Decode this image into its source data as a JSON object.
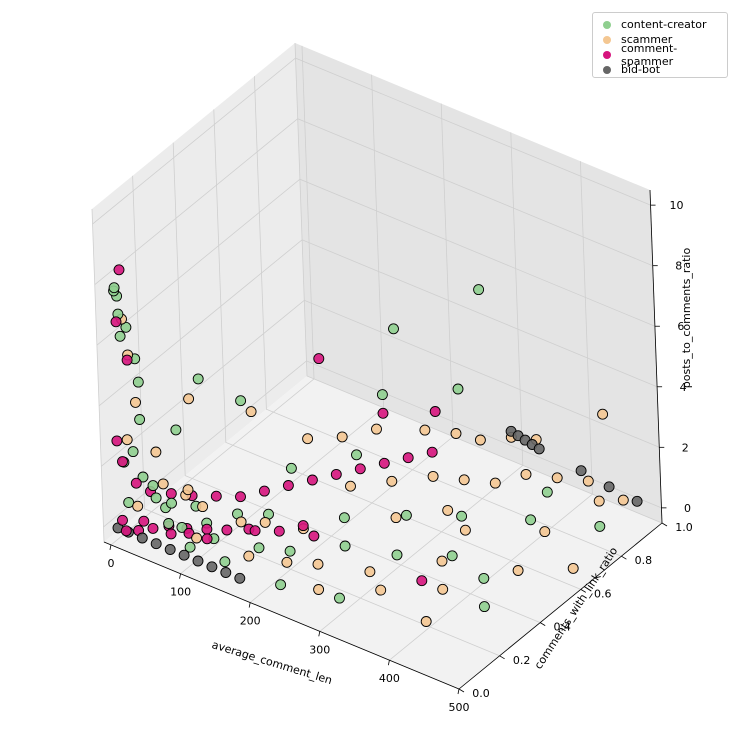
{
  "chart_data": {
    "type": "scatter",
    "projection": "3d",
    "title": "",
    "xlabel": "average_comment_len",
    "ylabel": "comments_with_link_ratio",
    "zlabel": "posts_to_comments_ratio",
    "xlim": [
      -10,
      500
    ],
    "ylim": [
      0.0,
      1.0
    ],
    "zlim": [
      -0.5,
      10.5
    ],
    "xticks": [
      "0",
      "100",
      "200",
      "300",
      "400",
      "500"
    ],
    "yticks": [
      "0.0",
      "0.2",
      "0.4",
      "0.6",
      "0.8",
      "1.0"
    ],
    "zticks": [
      "0",
      "2",
      "4",
      "6",
      "8",
      "10"
    ],
    "grid": true,
    "legend_position": "upper-right",
    "series": [
      {
        "name": "content-creator",
        "color": "#8fcf8f",
        "points": [
          [
            6,
            0.05,
            7.5
          ],
          [
            8,
            0.03,
            7.8
          ],
          [
            12,
            0.02,
            8.0
          ],
          [
            10,
            0.04,
            7.0
          ],
          [
            15,
            0.06,
            6.5
          ],
          [
            9,
            0.05,
            6.2
          ],
          [
            20,
            0.08,
            5.4
          ],
          [
            18,
            0.1,
            4.5
          ],
          [
            30,
            0.06,
            3.6
          ],
          [
            25,
            0.04,
            2.6
          ],
          [
            14,
            0.03,
            2.2
          ],
          [
            35,
            0.05,
            1.8
          ],
          [
            40,
            0.08,
            1.4
          ],
          [
            50,
            0.06,
            1.2
          ],
          [
            22,
            0.02,
            1.0
          ],
          [
            60,
            0.1,
            0.9
          ],
          [
            70,
            0.05,
            0.6
          ],
          [
            45,
            0.12,
            0.5
          ],
          [
            80,
            0.08,
            0.4
          ],
          [
            65,
            0.2,
            0.3
          ],
          [
            95,
            0.15,
            0.3
          ],
          [
            110,
            0.25,
            0.2
          ],
          [
            120,
            0.1,
            0.3
          ],
          [
            140,
            0.3,
            0.2
          ],
          [
            100,
            0.05,
            0.1
          ],
          [
            150,
            0.05,
            0.1
          ],
          [
            170,
            0.15,
            0.2
          ],
          [
            200,
            0.2,
            0.1
          ],
          [
            220,
            0.4,
            0.3
          ],
          [
            250,
            0.3,
            0.2
          ],
          [
            280,
            0.5,
            0.4
          ],
          [
            310,
            0.35,
            0.2
          ],
          [
            330,
            0.6,
            0.3
          ],
          [
            360,
            0.45,
            0.1
          ],
          [
            400,
            0.7,
            0.3
          ],
          [
            420,
            0.4,
            0.2
          ],
          [
            180,
            0.6,
            0.9
          ],
          [
            160,
            0.8,
            1.6
          ],
          [
            240,
            0.9,
            2.0
          ],
          [
            380,
            0.85,
            0.2
          ],
          [
            450,
            0.3,
            0.1
          ],
          [
            470,
            0.8,
            0.2
          ],
          [
            300,
            0.1,
            0.05
          ],
          [
            230,
            0.05,
            0.1
          ],
          [
            130,
            0.45,
            0.8
          ],
          [
            210,
            0.7,
            4.8
          ],
          [
            260,
            0.95,
            5.2
          ],
          [
            90,
            0.35,
            3.2
          ],
          [
            75,
            0.2,
            4.6
          ],
          [
            55,
            0.15,
            3.0
          ]
        ]
      },
      {
        "name": "scammer",
        "color": "#f4c792",
        "points": [
          [
            12,
            0.05,
            6.8
          ],
          [
            16,
            0.06,
            5.6
          ],
          [
            28,
            0.05,
            4.2
          ],
          [
            20,
            0.03,
            3.0
          ],
          [
            40,
            0.1,
            2.4
          ],
          [
            55,
            0.08,
            1.6
          ],
          [
            75,
            0.12,
            1.2
          ],
          [
            90,
            0.15,
            0.8
          ],
          [
            110,
            0.05,
            0.5
          ],
          [
            130,
            0.2,
            0.4
          ],
          [
            150,
            0.25,
            0.3
          ],
          [
            170,
            0.1,
            0.2
          ],
          [
            190,
            0.3,
            0.2
          ],
          [
            210,
            0.15,
            0.1
          ],
          [
            240,
            0.2,
            0.05
          ],
          [
            270,
            0.1,
            0.05
          ],
          [
            300,
            0.25,
            0.1
          ],
          [
            330,
            0.2,
            0.05
          ],
          [
            360,
            0.4,
            0.2
          ],
          [
            390,
            0.3,
            0.1
          ],
          [
            410,
            0.15,
            0.05
          ],
          [
            200,
            0.5,
            0.6
          ],
          [
            230,
            0.6,
            0.5
          ],
          [
            260,
            0.7,
            0.4
          ],
          [
            290,
            0.75,
            0.3
          ],
          [
            320,
            0.8,
            0.2
          ],
          [
            350,
            0.85,
            0.5
          ],
          [
            380,
            0.9,
            0.4
          ],
          [
            410,
            0.95,
            0.3
          ],
          [
            440,
            0.9,
            0.2
          ],
          [
            460,
            0.95,
            0.15
          ],
          [
            300,
            0.95,
            0.7
          ],
          [
            330,
            0.97,
            0.8
          ],
          [
            270,
            0.9,
            0.6
          ],
          [
            250,
            0.85,
            0.9
          ],
          [
            220,
            0.8,
            1.0
          ],
          [
            180,
            0.7,
            1.2
          ],
          [
            160,
            0.6,
            1.3
          ],
          [
            140,
            0.5,
            1.6
          ],
          [
            480,
            0.8,
            4.0
          ],
          [
            120,
            0.3,
            3.4
          ],
          [
            60,
            0.2,
            3.8
          ],
          [
            100,
            0.05,
            2.0
          ],
          [
            35,
            0.02,
            1.0
          ],
          [
            490,
            0.6,
            0.1
          ],
          [
            350,
            0.55,
            0.3
          ],
          [
            420,
            0.7,
            0.1
          ],
          [
            440,
            0.5,
            0.1
          ],
          [
            310,
            0.6,
            0.3
          ],
          [
            280,
            0.45,
            0.6
          ]
        ]
      },
      {
        "name": "comment-spammer",
        "color": "#d6147d",
        "points": [
          [
            14,
            0.04,
            8.5
          ],
          [
            10,
            0.03,
            6.8
          ],
          [
            18,
            0.05,
            5.5
          ],
          [
            8,
            0.02,
            2.9
          ],
          [
            12,
            0.03,
            2.2
          ],
          [
            25,
            0.05,
            1.5
          ],
          [
            30,
            0.1,
            1.0
          ],
          [
            45,
            0.15,
            0.8
          ],
          [
            60,
            0.2,
            0.6
          ],
          [
            80,
            0.25,
            0.5
          ],
          [
            100,
            0.3,
            0.4
          ],
          [
            120,
            0.35,
            0.5
          ],
          [
            140,
            0.4,
            0.6
          ],
          [
            160,
            0.45,
            0.7
          ],
          [
            180,
            0.5,
            0.8
          ],
          [
            200,
            0.55,
            0.9
          ],
          [
            220,
            0.6,
            1.0
          ],
          [
            240,
            0.65,
            1.1
          ],
          [
            260,
            0.7,
            1.2
          ],
          [
            150,
            0.2,
            0.3
          ],
          [
            170,
            0.25,
            0.2
          ],
          [
            190,
            0.3,
            0.3
          ],
          [
            110,
            0.1,
            0.2
          ],
          [
            90,
            0.08,
            0.3
          ],
          [
            70,
            0.06,
            0.2
          ],
          [
            50,
            0.04,
            0.3
          ],
          [
            40,
            0.03,
            0.5
          ],
          [
            35,
            0.02,
            0.2
          ],
          [
            20,
            0.01,
            0.1
          ],
          [
            15,
            0.01,
            0.4
          ],
          [
            55,
            0.1,
            0.1
          ],
          [
            75,
            0.12,
            0.1
          ],
          [
            95,
            0.15,
            0.1
          ],
          [
            115,
            0.18,
            0.1
          ],
          [
            135,
            0.22,
            0.1
          ],
          [
            205,
            0.3,
            0.1
          ],
          [
            360,
            0.3,
            0.1
          ],
          [
            130,
            0.6,
            3.6
          ],
          [
            175,
            0.75,
            1.4
          ],
          [
            230,
            0.82,
            1.6
          ]
        ]
      },
      {
        "name": "bid-bot",
        "color": "#666666",
        "points": [
          [
            5,
            0.02,
            0.0
          ],
          [
            20,
            0.02,
            0.0
          ],
          [
            40,
            0.02,
            0.0
          ],
          [
            60,
            0.02,
            0.0
          ],
          [
            80,
            0.02,
            0.0
          ],
          [
            100,
            0.02,
            0.0
          ],
          [
            120,
            0.02,
            0.0
          ],
          [
            140,
            0.02,
            0.0
          ],
          [
            160,
            0.02,
            0.0
          ],
          [
            180,
            0.02,
            0.0
          ],
          [
            300,
            0.95,
            0.9
          ],
          [
            310,
            0.95,
            0.85
          ],
          [
            320,
            0.95,
            0.8
          ],
          [
            330,
            0.95,
            0.75
          ],
          [
            340,
            0.95,
            0.7
          ],
          [
            400,
            0.95,
            0.55
          ],
          [
            440,
            0.95,
            0.4
          ],
          [
            480,
            0.95,
            0.3
          ]
        ]
      }
    ]
  }
}
